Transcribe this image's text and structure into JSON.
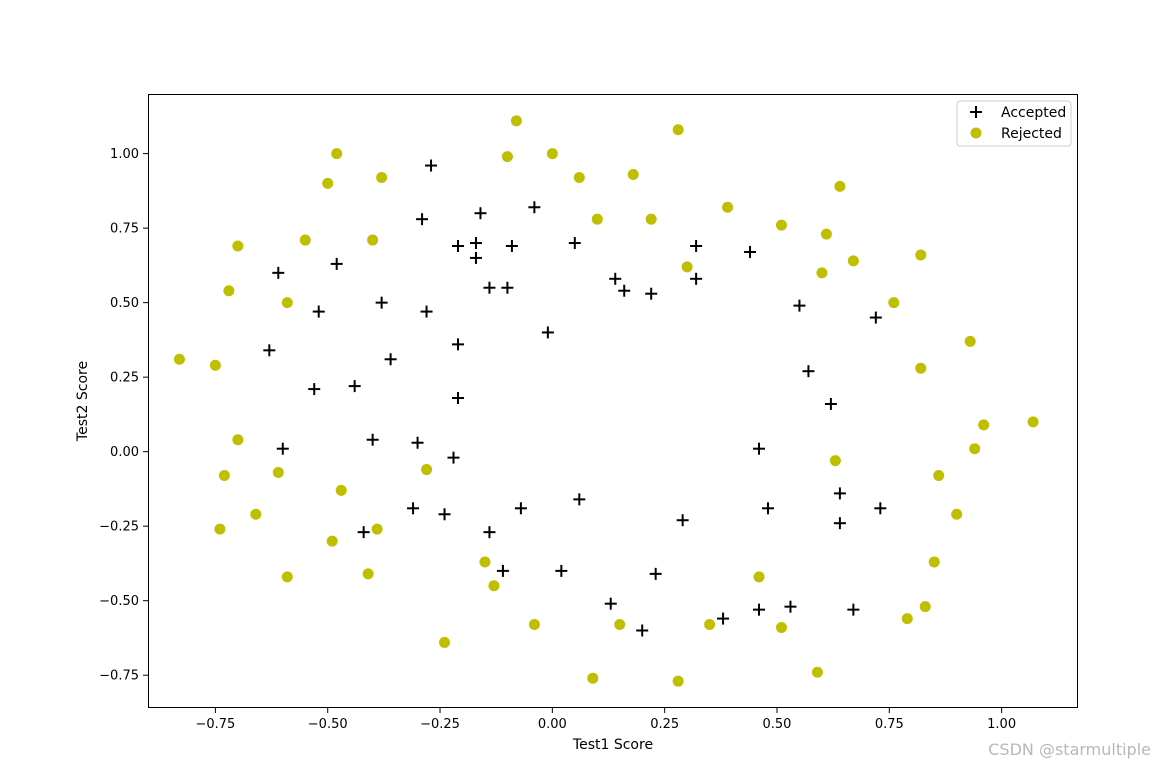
{
  "chart_data": {
    "type": "scatter",
    "xlabel": "Test1 Score",
    "ylabel": "Test2 Score",
    "xlim": [
      -0.9,
      1.17
    ],
    "ylim": [
      -0.86,
      1.2
    ],
    "x_ticks": [
      -0.75,
      -0.5,
      -0.25,
      0.0,
      0.25,
      0.5,
      0.75,
      1.0
    ],
    "y_ticks": [
      -0.75,
      -0.5,
      -0.25,
      0.0,
      0.25,
      0.5,
      0.75,
      1.0
    ],
    "x_tick_labels": [
      "−0.75",
      "−0.50",
      "−0.25",
      "0.00",
      "0.25",
      "0.50",
      "0.75",
      "1.00"
    ],
    "y_tick_labels": [
      "−0.75",
      "−0.50",
      "−0.25",
      "0.00",
      "0.25",
      "0.50",
      "0.75",
      "1.00"
    ],
    "grid": false,
    "legend_position": "top-right",
    "series": [
      {
        "name": "Accepted",
        "marker": "plus",
        "color": "#000000",
        "points": [
          [
            -0.27,
            0.96
          ],
          [
            -0.29,
            0.78
          ],
          [
            -0.16,
            0.8
          ],
          [
            -0.04,
            0.82
          ],
          [
            -0.21,
            0.69
          ],
          [
            -0.17,
            0.7
          ],
          [
            -0.09,
            0.69
          ],
          [
            0.05,
            0.7
          ],
          [
            0.32,
            0.69
          ],
          [
            0.44,
            0.67
          ],
          [
            -0.61,
            0.6
          ],
          [
            -0.48,
            0.63
          ],
          [
            -0.17,
            0.65
          ],
          [
            0.14,
            0.58
          ],
          [
            0.32,
            0.58
          ],
          [
            -0.52,
            0.47
          ],
          [
            -0.38,
            0.5
          ],
          [
            -0.28,
            0.47
          ],
          [
            -0.14,
            0.55
          ],
          [
            -0.1,
            0.55
          ],
          [
            0.16,
            0.54
          ],
          [
            0.22,
            0.53
          ],
          [
            0.55,
            0.49
          ],
          [
            0.72,
            0.45
          ],
          [
            -0.63,
            0.34
          ],
          [
            -0.21,
            0.36
          ],
          [
            -0.36,
            0.31
          ],
          [
            -0.01,
            0.4
          ],
          [
            0.57,
            0.27
          ],
          [
            -0.53,
            0.21
          ],
          [
            -0.44,
            0.22
          ],
          [
            -0.21,
            0.18
          ],
          [
            0.62,
            0.16
          ],
          [
            -0.6,
            0.01
          ],
          [
            -0.4,
            0.04
          ],
          [
            -0.3,
            0.03
          ],
          [
            -0.22,
            -0.02
          ],
          [
            0.46,
            0.01
          ],
          [
            0.64,
            -0.14
          ],
          [
            -0.31,
            -0.19
          ],
          [
            -0.24,
            -0.21
          ],
          [
            -0.07,
            -0.19
          ],
          [
            0.06,
            -0.16
          ],
          [
            0.48,
            -0.19
          ],
          [
            0.73,
            -0.19
          ],
          [
            0.29,
            -0.23
          ],
          [
            0.64,
            -0.24
          ],
          [
            -0.42,
            -0.27
          ],
          [
            -0.14,
            -0.27
          ],
          [
            -0.11,
            -0.4
          ],
          [
            0.02,
            -0.4
          ],
          [
            0.23,
            -0.41
          ],
          [
            0.13,
            -0.51
          ],
          [
            0.2,
            -0.6
          ],
          [
            0.38,
            -0.56
          ],
          [
            0.46,
            -0.53
          ],
          [
            0.53,
            -0.52
          ],
          [
            0.67,
            -0.53
          ]
        ]
      },
      {
        "name": "Rejected",
        "marker": "circle",
        "color": "#bfbf00",
        "points": [
          [
            -0.08,
            1.11
          ],
          [
            0.28,
            1.08
          ],
          [
            -0.48,
            1.0
          ],
          [
            -0.1,
            0.99
          ],
          [
            0.0,
            1.0
          ],
          [
            -0.5,
            0.9
          ],
          [
            -0.38,
            0.92
          ],
          [
            0.06,
            0.92
          ],
          [
            0.18,
            0.93
          ],
          [
            0.64,
            0.89
          ],
          [
            0.39,
            0.82
          ],
          [
            0.1,
            0.78
          ],
          [
            0.22,
            0.78
          ],
          [
            0.51,
            0.76
          ],
          [
            0.61,
            0.73
          ],
          [
            -0.55,
            0.71
          ],
          [
            -0.4,
            0.71
          ],
          [
            -0.7,
            0.69
          ],
          [
            0.82,
            0.66
          ],
          [
            0.67,
            0.64
          ],
          [
            0.3,
            0.62
          ],
          [
            0.6,
            0.6
          ],
          [
            -0.72,
            0.54
          ],
          [
            -0.59,
            0.5
          ],
          [
            0.76,
            0.5
          ],
          [
            0.93,
            0.37
          ],
          [
            -0.83,
            0.31
          ],
          [
            -0.75,
            0.29
          ],
          [
            0.82,
            0.28
          ],
          [
            0.96,
            0.09
          ],
          [
            1.07,
            0.1
          ],
          [
            -0.7,
            0.04
          ],
          [
            0.94,
            0.01
          ],
          [
            0.63,
            -0.03
          ],
          [
            -0.61,
            -0.07
          ],
          [
            -0.28,
            -0.06
          ],
          [
            -0.73,
            -0.08
          ],
          [
            0.86,
            -0.08
          ],
          [
            -0.47,
            -0.13
          ],
          [
            -0.66,
            -0.21
          ],
          [
            0.9,
            -0.21
          ],
          [
            -0.74,
            -0.26
          ],
          [
            -0.39,
            -0.26
          ],
          [
            -0.49,
            -0.3
          ],
          [
            -0.15,
            -0.37
          ],
          [
            0.85,
            -0.37
          ],
          [
            -0.59,
            -0.42
          ],
          [
            -0.41,
            -0.41
          ],
          [
            0.46,
            -0.42
          ],
          [
            -0.13,
            -0.45
          ],
          [
            -0.04,
            -0.58
          ],
          [
            0.15,
            -0.58
          ],
          [
            0.35,
            -0.58
          ],
          [
            0.51,
            -0.59
          ],
          [
            0.79,
            -0.56
          ],
          [
            0.83,
            -0.52
          ],
          [
            -0.24,
            -0.64
          ],
          [
            0.09,
            -0.76
          ],
          [
            0.28,
            -0.77
          ],
          [
            0.59,
            -0.74
          ]
        ]
      }
    ]
  },
  "watermark": "CSDN @starmultiple"
}
